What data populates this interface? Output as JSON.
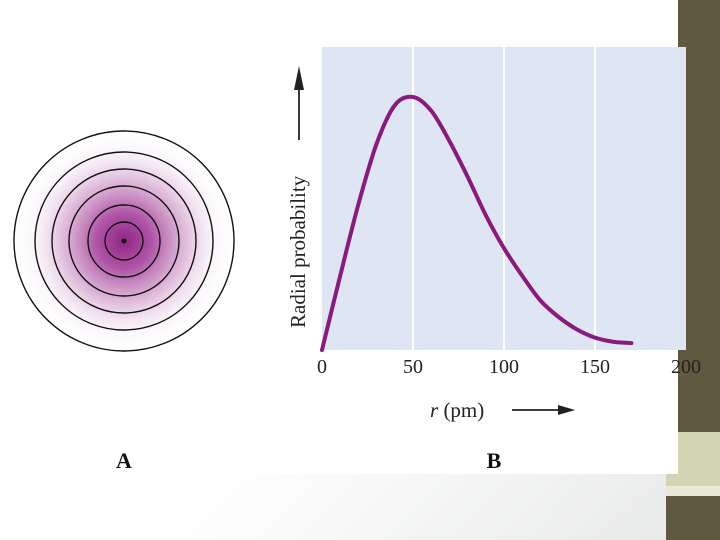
{
  "colors": {
    "plot_background": "#dfe6f3",
    "gridline": "#ffffff",
    "curve": "#8a1a7e",
    "orbital_center": "#8a1a7e",
    "sidebar": "#61593f",
    "sidebar_accent": "#d3d4b4"
  },
  "panel_a": {
    "label": "A"
  },
  "panel_b": {
    "label": "B"
  },
  "chart_data": {
    "type": "line",
    "ylabel": "Radial probability",
    "xlabel_var": "r",
    "xlabel_unit": " (pm)",
    "xlim": [
      0,
      200
    ],
    "ylim": [
      0,
      1
    ],
    "xticks": [
      0,
      50,
      100,
      150,
      200
    ],
    "grid": "vertical",
    "series": [
      {
        "x": [
          0,
          10,
          20,
          30,
          40,
          50,
          60,
          70,
          80,
          90,
          100,
          110,
          120,
          130,
          140,
          150,
          160,
          170
        ],
        "y": [
          0.0,
          0.27,
          0.53,
          0.75,
          0.89,
          0.92,
          0.87,
          0.76,
          0.63,
          0.49,
          0.37,
          0.27,
          0.18,
          0.12,
          0.075,
          0.045,
          0.03,
          0.025
        ]
      }
    ]
  }
}
